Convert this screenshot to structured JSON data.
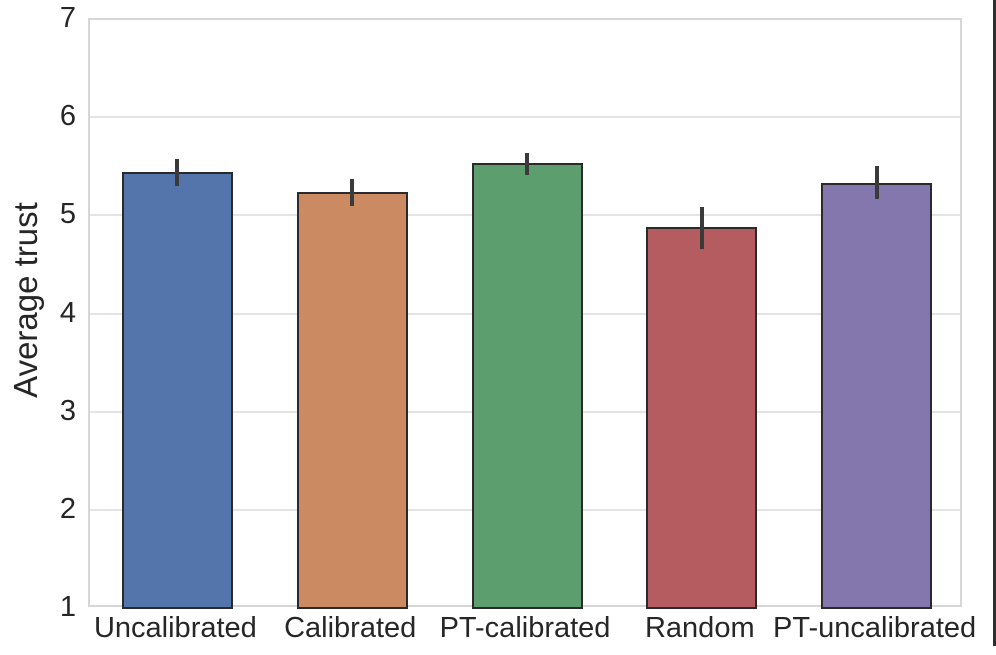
{
  "figure": {
    "ylabel": "Average trust"
  },
  "chart_data": {
    "type": "bar",
    "title": "",
    "xlabel": "",
    "ylabel": "Average trust",
    "ylim": [
      1,
      7
    ],
    "yticks": [
      1,
      2,
      3,
      4,
      5,
      6,
      7
    ],
    "grid": true,
    "legend": false,
    "categories": [
      "Uncalibrated",
      "Calibrated",
      "PT-calibrated",
      "Random",
      "PT-uncalibrated"
    ],
    "values": [
      5.45,
      5.25,
      5.54,
      4.89,
      5.34
    ],
    "error_low": [
      5.31,
      5.11,
      5.42,
      4.67,
      5.18
    ],
    "error_high": [
      5.58,
      5.38,
      5.65,
      5.1,
      5.51
    ],
    "bar_colors": [
      "#5375ab",
      "#cc8a63",
      "#5d9e6e",
      "#b55c60",
      "#8377ad"
    ],
    "bar_edge_color": "#2a2a2a",
    "error_bar_color": "#3a3a3a",
    "grid_color": "#e4e4e4"
  }
}
